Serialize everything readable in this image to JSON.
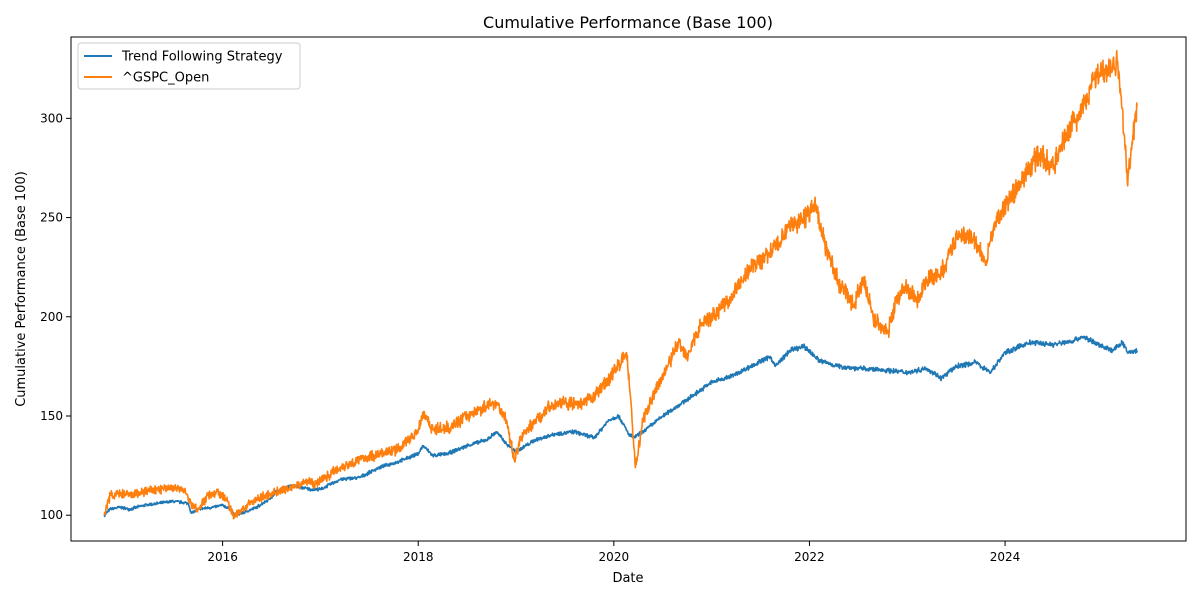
{
  "chart_data": {
    "type": "line",
    "title": "Cumulative Performance (Base 100)",
    "xlabel": "Date",
    "ylabel": "Cumulative Performance (Base 100)",
    "xlim": [
      2014.45,
      2025.85
    ],
    "ylim": [
      87,
      341
    ],
    "x_ticks": [
      2016,
      2018,
      2020,
      2022,
      2024
    ],
    "x_tick_labels": [
      "2016",
      "2018",
      "2020",
      "2022",
      "2024"
    ],
    "y_ticks": [
      100,
      150,
      200,
      250,
      300
    ],
    "y_tick_labels": [
      "100",
      "150",
      "200",
      "250",
      "300"
    ],
    "grid": false,
    "legend": "top-left",
    "series": [
      {
        "name": "Trend Following Strategy",
        "color": "#1f77b4",
        "x": [
          2014.79,
          2014.85,
          2014.95,
          2015.05,
          2015.2,
          2015.35,
          2015.5,
          2015.65,
          2015.68,
          2015.75,
          2015.9,
          2016.0,
          2016.08,
          2016.12,
          2016.2,
          2016.35,
          2016.5,
          2016.55,
          2016.7,
          2016.9,
          2017.0,
          2017.2,
          2017.4,
          2017.6,
          2017.8,
          2018.0,
          2018.05,
          2018.15,
          2018.3,
          2018.5,
          2018.7,
          2018.8,
          2018.9,
          2019.0,
          2019.2,
          2019.4,
          2019.6,
          2019.8,
          2019.95,
          2020.05,
          2020.15,
          2020.2,
          2020.3,
          2020.5,
          2020.65,
          2020.8,
          2021.0,
          2021.2,
          2021.4,
          2021.6,
          2021.65,
          2021.8,
          2021.95,
          2022.1,
          2022.3,
          2022.5,
          2022.8,
          2023.0,
          2023.2,
          2023.35,
          2023.5,
          2023.7,
          2023.85,
          2024.0,
          2024.25,
          2024.5,
          2024.7,
          2024.8,
          2024.95,
          2025.1,
          2025.2,
          2025.25,
          2025.35
        ],
        "values": [
          100,
          103,
          104,
          103,
          105,
          106,
          107,
          106,
          101,
          103,
          104,
          105,
          103,
          100,
          101,
          104,
          109,
          112,
          115,
          113,
          113,
          118,
          119,
          124,
          127,
          131,
          135,
          130,
          131,
          135,
          138,
          142,
          136,
          132,
          138,
          141,
          142,
          139,
          148,
          150,
          141,
          139,
          142,
          150,
          155,
          160,
          167,
          170,
          175,
          180,
          175,
          183,
          185,
          178,
          175,
          174,
          173,
          172,
          174,
          169,
          175,
          177,
          172,
          182,
          187,
          186,
          188,
          190,
          186,
          183,
          187,
          182,
          183
        ]
      },
      {
        "name": "^GSPC_Open",
        "color": "#ff7f0e",
        "x": [
          2014.79,
          2014.85,
          2014.95,
          2015.05,
          2015.2,
          2015.35,
          2015.5,
          2015.62,
          2015.68,
          2015.75,
          2015.85,
          2015.95,
          2016.05,
          2016.12,
          2016.2,
          2016.35,
          2016.5,
          2016.65,
          2016.85,
          2016.95,
          2017.2,
          2017.4,
          2017.6,
          2017.8,
          2017.9,
          2018.0,
          2018.05,
          2018.1,
          2018.15,
          2018.3,
          2018.5,
          2018.7,
          2018.8,
          2018.9,
          2018.98,
          2019.05,
          2019.2,
          2019.35,
          2019.5,
          2019.65,
          2019.8,
          2020.0,
          2020.13,
          2020.17,
          2020.22,
          2020.3,
          2020.45,
          2020.6,
          2020.65,
          2020.75,
          2020.9,
          2021.0,
          2021.2,
          2021.4,
          2021.6,
          2021.8,
          2021.97,
          2022.05,
          2022.2,
          2022.3,
          2022.45,
          2022.55,
          2022.65,
          2022.8,
          2022.9,
          2023.0,
          2023.1,
          2023.2,
          2023.35,
          2023.5,
          2023.55,
          2023.7,
          2023.8,
          2023.9,
          2024.0,
          2024.25,
          2024.35,
          2024.5,
          2024.6,
          2024.7,
          2024.85,
          2024.9,
          2025.05,
          2025.15,
          2025.2,
          2025.25,
          2025.35
        ],
        "values": [
          100,
          110,
          111,
          110,
          112,
          113,
          114,
          112,
          105,
          103,
          110,
          112,
          107,
          99,
          103,
          108,
          111,
          113,
          117,
          116,
          124,
          128,
          131,
          133,
          138,
          143,
          152,
          148,
          143,
          144,
          150,
          155,
          157,
          148,
          128,
          139,
          148,
          155,
          157,
          155,
          160,
          172,
          182,
          160,
          124,
          148,
          165,
          180,
          187,
          181,
          197,
          200,
          210,
          225,
          232,
          245,
          251,
          257,
          230,
          217,
          205,
          220,
          200,
          192,
          210,
          215,
          208,
          218,
          222,
          240,
          242,
          238,
          226,
          248,
          255,
          275,
          282,
          275,
          290,
          298,
          310,
          320,
          325,
          329,
          305,
          268,
          306
        ]
      }
    ]
  }
}
